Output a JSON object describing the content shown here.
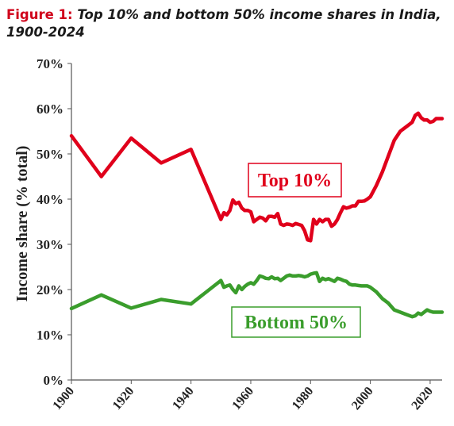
{
  "figure_label": "Figure 1:",
  "figure_title": "Top 10% and bottom 50% income shares in India,",
  "figure_title_line2": "1900-2024",
  "chart_data": {
    "type": "line",
    "ylabel": "Income share (% total)",
    "xlabel": "",
    "xlim": [
      1900,
      2024
    ],
    "ylim": [
      0,
      70
    ],
    "y_ticks": [
      "0%",
      "10%",
      "20%",
      "30%",
      "40%",
      "50%",
      "60%",
      "70%"
    ],
    "x_ticks": [
      "1900",
      "1920",
      "1940",
      "1960",
      "1980",
      "2000",
      "2020"
    ],
    "grid": false,
    "series": [
      {
        "name": "Top 10%",
        "color": "#e0001b",
        "x": [
          1900,
          1910,
          1920,
          1930,
          1940,
          1950,
          1951,
          1952,
          1953,
          1954,
          1955,
          1956,
          1957,
          1958,
          1959,
          1960,
          1961,
          1962,
          1963,
          1964,
          1965,
          1966,
          1967,
          1968,
          1969,
          1970,
          1971,
          1972,
          1973,
          1974,
          1975,
          1976,
          1977,
          1978,
          1979,
          1980,
          1981,
          1982,
          1983,
          1984,
          1985,
          1986,
          1987,
          1988,
          1989,
          1990,
          1991,
          1992,
          1993,
          1994,
          1995,
          1996,
          1997,
          1998,
          1999,
          2000,
          2002,
          2004,
          2006,
          2008,
          2010,
          2011,
          2012,
          2013,
          2014,
          2015,
          2016,
          2017,
          2018,
          2019,
          2020,
          2021,
          2022,
          2023,
          2024
        ],
        "values": [
          54,
          45,
          53.5,
          48,
          51,
          35.5,
          37,
          36.5,
          37.5,
          39.8,
          39,
          39.3,
          38,
          37.5,
          37.5,
          37.2,
          35,
          35.5,
          36,
          35.8,
          35.2,
          36.2,
          36.2,
          36,
          36.8,
          34.5,
          34.2,
          34.5,
          34.4,
          34.2,
          34.6,
          34.4,
          34.2,
          33,
          31,
          30.8,
          35.5,
          34.5,
          35.5,
          35,
          35.5,
          35.5,
          34,
          34.5,
          35.5,
          37,
          38.3,
          38,
          38.2,
          38.5,
          38.5,
          39.5,
          39.5,
          39.6,
          40,
          40.5,
          43,
          46,
          49.5,
          53,
          55,
          55.5,
          56,
          56.5,
          57,
          58.5,
          59,
          58,
          57.5,
          57.5,
          57,
          57.2,
          57.8,
          57.8,
          57.8
        ]
      },
      {
        "name": "Bottom 50%",
        "color": "#3a9d2c",
        "x": [
          1900,
          1910,
          1920,
          1930,
          1940,
          1950,
          1951,
          1952,
          1953,
          1954,
          1955,
          1956,
          1957,
          1958,
          1959,
          1960,
          1961,
          1962,
          1963,
          1964,
          1965,
          1966,
          1967,
          1968,
          1969,
          1970,
          1971,
          1972,
          1973,
          1974,
          1975,
          1976,
          1977,
          1978,
          1979,
          1980,
          1981,
          1982,
          1983,
          1984,
          1985,
          1986,
          1987,
          1988,
          1989,
          1990,
          1991,
          1992,
          1993,
          1994,
          1995,
          1996,
          1997,
          1998,
          1999,
          2000,
          2002,
          2004,
          2006,
          2008,
          2010,
          2012,
          2014,
          2015,
          2016,
          2017,
          2018,
          2019,
          2020,
          2021,
          2022,
          2023,
          2024
        ],
        "values": [
          15.8,
          18.8,
          15.9,
          17.8,
          16.8,
          22,
          20.5,
          20.8,
          21,
          20,
          19.3,
          20.8,
          20,
          20.7,
          21.2,
          21.5,
          21.2,
          22,
          23,
          22.8,
          22.5,
          22.4,
          22.8,
          22.4,
          22.5,
          22,
          22.5,
          23,
          23.2,
          23,
          23,
          23.1,
          23,
          22.8,
          23,
          23.4,
          23.6,
          23.7,
          21.8,
          22.5,
          22.2,
          22.4,
          22.1,
          21.8,
          22.5,
          22.3,
          22,
          21.8,
          21.2,
          21,
          21,
          20.9,
          20.8,
          20.8,
          20.8,
          20.5,
          19.5,
          18,
          17,
          15.5,
          15,
          14.5,
          14,
          14.2,
          14.8,
          14.5,
          15,
          15.5,
          15.2,
          15,
          15,
          15,
          15
        ]
      }
    ],
    "annotations": [
      {
        "text": "Top 10%",
        "series": 0
      },
      {
        "text": "Bottom 50%",
        "series": 1
      }
    ]
  }
}
